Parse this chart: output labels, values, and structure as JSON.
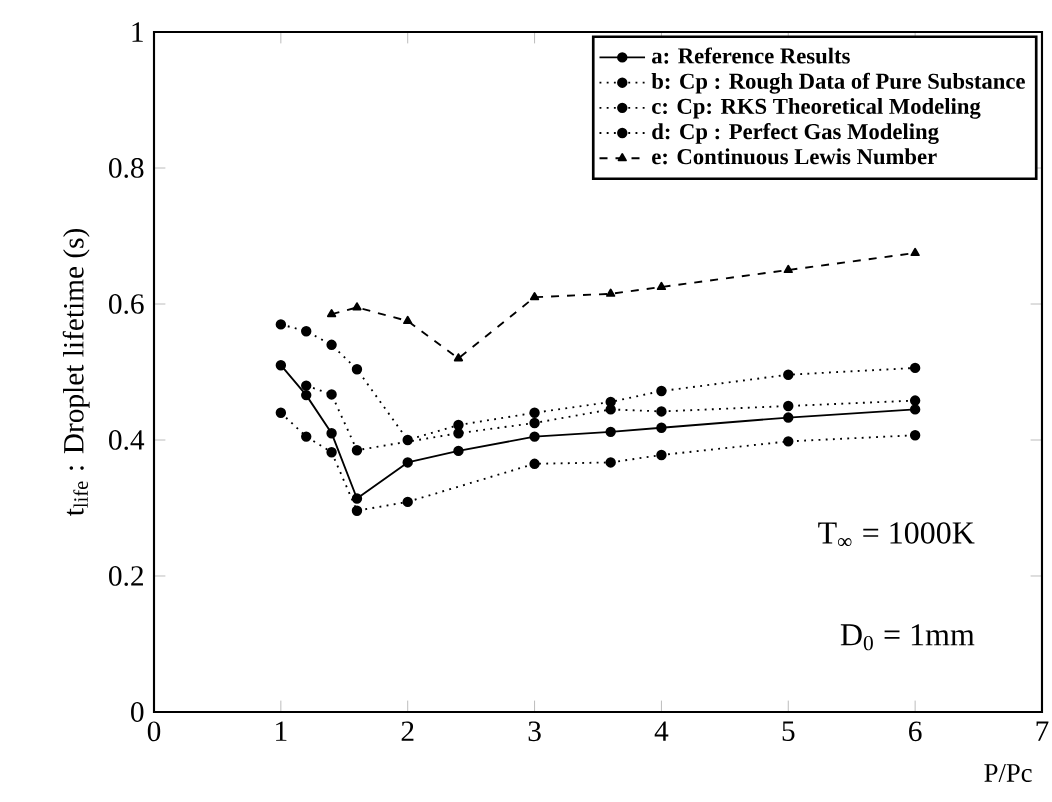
{
  "chart_data": {
    "type": "line",
    "xlabel": "P/Pc",
    "ylabel": "t$_{life}$ : Droplet lifetime (s)",
    "xlim": [
      0,
      7
    ],
    "xticks": [
      0,
      1,
      2,
      3,
      4,
      5,
      6,
      7
    ],
    "ylim": [
      0,
      1
    ],
    "yticks": [
      0,
      0.2,
      0.4,
      0.6,
      0.8,
      1
    ],
    "grid": false,
    "legend": "top right",
    "annotations": [
      "T$_{∞}$ = 1000K",
      "D$_{0}$ = 1mm"
    ],
    "series": [
      {
        "name": "a: Reference Results",
        "color": "#000000",
        "marker": "circle",
        "line_style": "solid",
        "x": [
          1,
          1.2,
          1.4,
          1.6,
          2,
          2.4,
          3,
          3.6,
          4,
          5,
          6
        ],
        "values": [
          0.51,
          0.466,
          0.41,
          0.314,
          0.367,
          0.384,
          0.405,
          0.412,
          0.418,
          0.433,
          0.445
        ]
      },
      {
        "name": "b: Cp : Rough Data of Pure Substance",
        "color": "#000000",
        "marker": "circle",
        "line_style": "dotted",
        "x": [
          1.2,
          1.4,
          1.6,
          2.4,
          3,
          3.6,
          4,
          5,
          6
        ],
        "values": [
          0.48,
          0.467,
          0.385,
          0.41,
          0.425,
          0.445,
          0.442,
          0.45,
          0.458
        ]
      },
      {
        "name": "c: Cp: RKS Theoretical Modeling",
        "color": "#000000",
        "marker": "circle",
        "line_style": "dotted",
        "x": [
          1,
          1.2,
          1.4,
          1.6,
          2,
          2.4,
          3,
          3.6,
          4,
          5,
          6
        ],
        "values": [
          0.57,
          0.56,
          0.54,
          0.504,
          0.4,
          0.422,
          0.44,
          0.456,
          0.472,
          0.496,
          0.506
        ]
      },
      {
        "name": "d: Cp : Perfect Gas Modeling",
        "color": "#000000",
        "marker": "circle",
        "line_style": "dotted",
        "x": [
          1,
          1.2,
          1.4,
          1.6,
          2,
          3,
          3.6,
          4,
          5,
          6
        ],
        "values": [
          0.44,
          0.405,
          0.382,
          0.296,
          0.309,
          0.365,
          0.367,
          0.378,
          0.398,
          0.407
        ]
      },
      {
        "name": "e: Continuous Lewis Number",
        "color": "#000000",
        "marker": "triangle",
        "line_style": "dashed",
        "x": [
          1.4,
          1.6,
          2,
          2.4,
          3,
          3.6,
          4,
          5,
          6
        ],
        "values": [
          0.585,
          0.595,
          0.575,
          0.52,
          0.61,
          0.615,
          0.625,
          0.65,
          0.675
        ]
      }
    ]
  }
}
